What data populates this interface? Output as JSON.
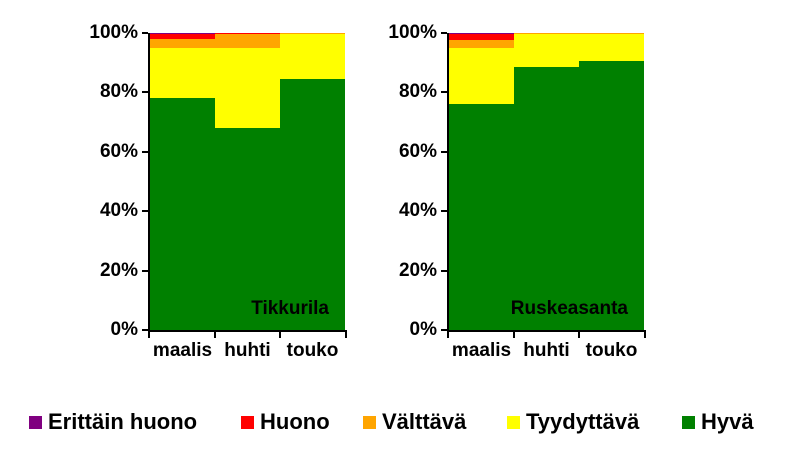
{
  "figure": {
    "background": "#ffffff",
    "text_color": "#000000"
  },
  "legend": {
    "items": [
      {
        "label": "Erittäin huono",
        "color": "#800080"
      },
      {
        "label": "Huono",
        "color": "#FF0000"
      },
      {
        "label": "Välttävä",
        "color": "#FFA500"
      },
      {
        "label": "Tyydyttävä",
        "color": "#FFFF00"
      },
      {
        "label": "Hyvä",
        "color": "#008000"
      }
    ]
  },
  "chart_data": [
    {
      "type": "bar",
      "subtype": "stacked-100-percent",
      "title": "Tikkurila",
      "categories": [
        "maalis",
        "huhti",
        "touko"
      ],
      "series": [
        {
          "name": "Erittäin huono",
          "color": "#800080",
          "values": [
            0.3,
            0,
            0
          ]
        },
        {
          "name": "Huono",
          "color": "#FF0000",
          "values": [
            1.7,
            0.5,
            0
          ]
        },
        {
          "name": "Välttävä",
          "color": "#FFA500",
          "values": [
            3,
            4.5,
            0.5
          ]
        },
        {
          "name": "Tyydyttävä",
          "color": "#FFFF00",
          "values": [
            17,
            27,
            15
          ]
        },
        {
          "name": "Hyvä",
          "color": "#008000",
          "values": [
            78,
            68,
            84.5
          ]
        }
      ],
      "y_ticks": [
        "0%",
        "20%",
        "40%",
        "60%",
        "80%",
        "100%"
      ],
      "ylim": [
        0,
        100
      ],
      "grid": false,
      "legend_position": "bottom-shared"
    },
    {
      "type": "bar",
      "subtype": "stacked-100-percent",
      "title": "Ruskeasanta",
      "categories": [
        "maalis",
        "huhti",
        "touko"
      ],
      "series": [
        {
          "name": "Erittäin huono",
          "color": "#800080",
          "values": [
            0.3,
            0,
            0
          ]
        },
        {
          "name": "Huono",
          "color": "#FF0000",
          "values": [
            2.2,
            0,
            0
          ]
        },
        {
          "name": "Välttävä",
          "color": "#FFA500",
          "values": [
            2.5,
            0.5,
            0.5
          ]
        },
        {
          "name": "Tyydyttävä",
          "color": "#FFFF00",
          "values": [
            19,
            11,
            9
          ]
        },
        {
          "name": "Hyvä",
          "color": "#008000",
          "values": [
            76,
            88.5,
            90.5
          ]
        }
      ],
      "y_ticks": [
        "0%",
        "20%",
        "40%",
        "60%",
        "80%",
        "100%"
      ],
      "ylim": [
        0,
        100
      ],
      "grid": false,
      "legend_position": "bottom-shared"
    }
  ]
}
